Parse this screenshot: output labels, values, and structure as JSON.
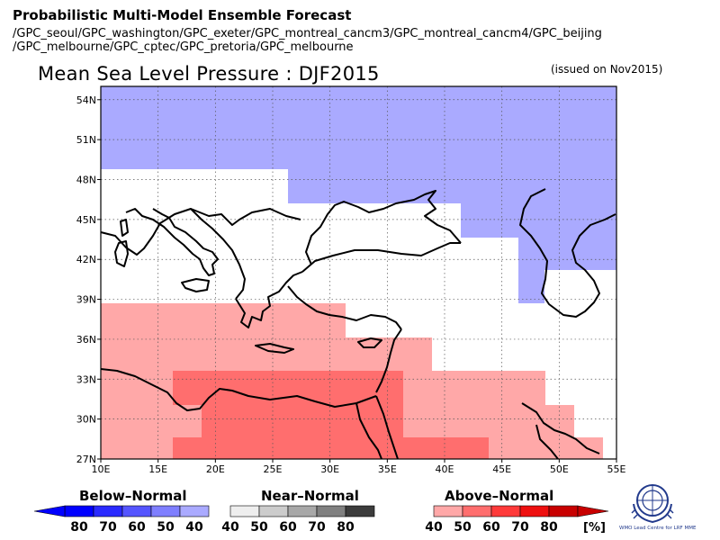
{
  "header": {
    "title": "Probabilistic Multi-Model Ensemble Forecast",
    "models_line1": "/GPC_seoul/GPC_washington/GPC_exeter/GPC_montreal_cancm3/GPC_montreal_cancm4/GPC_beijing",
    "models_line2": "/GPC_melbourne/GPC_cptec/GPC_pretoria/GPC_melbourne"
  },
  "map": {
    "title": "Mean Sea Level Pressure : DJF2015",
    "issued": "(issued on Nov2015)",
    "lon_range": [
      10,
      55
    ],
    "lat_range": [
      27,
      55
    ],
    "lon_ticks": [
      "10E",
      "15E",
      "20E",
      "25E",
      "30E",
      "35E",
      "40E",
      "45E",
      "50E",
      "55E"
    ],
    "lat_ticks": [
      "27N",
      "30N",
      "33N",
      "36N",
      "39N",
      "42N",
      "45N",
      "48N",
      "51N",
      "54N"
    ]
  },
  "legend": {
    "below": {
      "label": "Below–Normal",
      "ticks": [
        "80",
        "70",
        "60",
        "50",
        "40"
      ],
      "colors": [
        "#0000ff",
        "#2a2aff",
        "#5555ff",
        "#7f7fff",
        "#aaaaff"
      ]
    },
    "near": {
      "label": "Near–Normal",
      "ticks": [
        "40",
        "50",
        "60",
        "70",
        "80"
      ],
      "colors": [
        "#eeeeee",
        "#cccccc",
        "#a8a8a8",
        "#808080",
        "#3c3c3c"
      ]
    },
    "above": {
      "label": "Above–Normal",
      "ticks": [
        "40",
        "50",
        "60",
        "70",
        "80"
      ],
      "colors": [
        "#ffa8a8",
        "#ff6e6e",
        "#ff3a3a",
        "#ee1010",
        "#c80000"
      ],
      "unit": "[%]"
    }
  },
  "logo": {
    "text": "WMO Lead Centre for LRF MME"
  }
}
